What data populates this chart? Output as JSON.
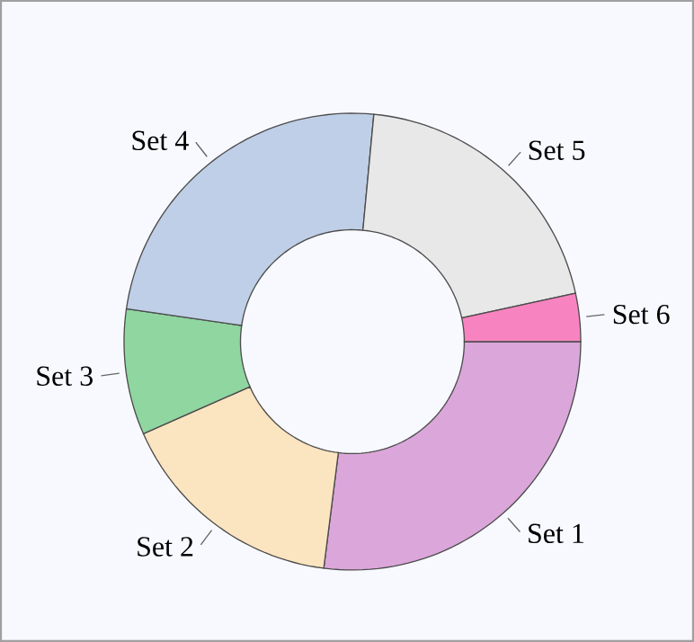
{
  "chart_data": {
    "type": "donut",
    "categories": [
      "Set 1",
      "Set 2",
      "Set 3",
      "Set 4",
      "Set 5",
      "Set 6"
    ],
    "values": [
      27,
      16.4,
      8.9,
      24.2,
      20.1,
      3.4
    ],
    "colors": [
      "#dba6da",
      "#fbe4c0",
      "#8fd6a0",
      "#bfcfe7",
      "#e8e8e8",
      "#f784c0"
    ]
  }
}
